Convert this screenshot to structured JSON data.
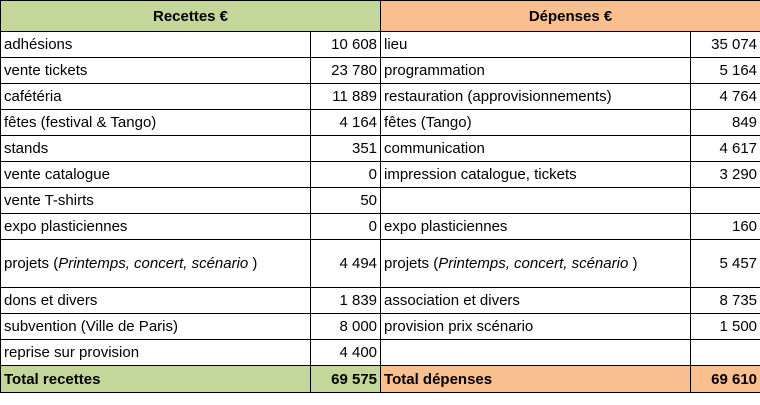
{
  "header": {
    "recettes": "Recettes €",
    "depenses": "Dépenses €"
  },
  "rows": [
    [
      {
        "label": "adhésions",
        "amount": "10 608"
      },
      {
        "label": "lieu",
        "amount": "35 074"
      }
    ],
    [
      {
        "label": "vente tickets",
        "amount": "23 780"
      },
      {
        "label": "programmation",
        "amount": "5 164"
      }
    ],
    [
      {
        "label": "cafétéria",
        "amount": "11 889"
      },
      {
        "label": "restauration (approvisionnements)",
        "amount": "4 764"
      }
    ],
    [
      {
        "label": "fêtes (festival & Tango)",
        "amount": "4 164"
      },
      {
        "label": "fêtes (Tango)",
        "amount": "849"
      }
    ],
    [
      {
        "label": "stands",
        "amount": "351"
      },
      {
        "label": "communication",
        "amount": "4 617"
      }
    ],
    [
      {
        "label": "vente catalogue",
        "amount": "0"
      },
      {
        "label": "impression catalogue, tickets",
        "amount": "3 290"
      }
    ],
    [
      {
        "label": "vente T-shirts",
        "amount": "50"
      },
      null
    ],
    [
      {
        "label": "expo plasticiennes",
        "amount": "0"
      },
      {
        "label": "expo plasticiennes",
        "amount": "160"
      }
    ],
    [
      {
        "label": "projets (",
        "italic": "Printemps, concert, scénario",
        "after": " )",
        "amount": "4 494"
      },
      {
        "label": "projets (",
        "italic": "Printemps, concert, scénario",
        "after": " )",
        "amount": "5 457"
      }
    ],
    [
      {
        "label": "dons et divers",
        "amount": "1 839"
      },
      {
        "label": "association et divers",
        "amount": "8 735"
      }
    ],
    [
      {
        "label": "subvention (Ville de Paris)",
        "amount": "8 000"
      },
      {
        "label": "provision prix scénario",
        "amount": "1 500"
      }
    ],
    [
      {
        "label": "reprise sur provision",
        "amount": "4 400"
      },
      null
    ]
  ],
  "totals": [
    {
      "label": "Total recettes",
      "amount": "69 575"
    },
    {
      "label": "Total dépenses",
      "amount": "69 610"
    }
  ]
}
